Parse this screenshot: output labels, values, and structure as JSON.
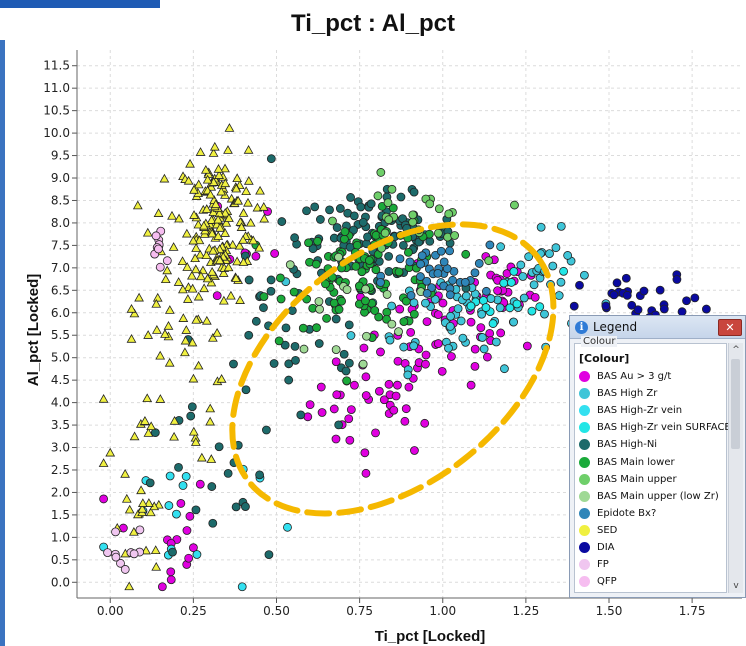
{
  "chart_data": {
    "type": "scatter",
    "title": "Ti_pct : Al_pct",
    "xlabel": "Ti_pct [Locked]",
    "ylabel": "Al_pct [Locked]",
    "xlim": [
      -0.1,
      1.9
    ],
    "ylim": [
      -0.35,
      11.85
    ],
    "x_ticks": [
      "0.00",
      "0.25",
      "0.50",
      "0.75",
      "1.00",
      "1.25",
      "1.50",
      "1.75"
    ],
    "y_ticks": [
      "0.0",
      "0.5",
      "1.0",
      "1.5",
      "2.0",
      "2.5",
      "3.0",
      "3.5",
      "4.0",
      "4.5",
      "5.0",
      "5.5",
      "6.0",
      "6.5",
      "7.0",
      "7.5",
      "8.0",
      "8.5",
      "9.0",
      "9.5",
      "10.0",
      "10.5",
      "11.0",
      "11.5"
    ],
    "grid": true,
    "series": [
      {
        "name": "BAS Au > 3 g/t",
        "color": "#e000e0",
        "marker": "circle",
        "clusters": [
          {
            "cx": 0.8,
            "cy": 4.0,
            "sx": 0.1,
            "sy": 0.6,
            "n": 40
          },
          {
            "cx": 1.0,
            "cy": 5.6,
            "sx": 0.12,
            "sy": 0.6,
            "n": 50
          },
          {
            "cx": 1.2,
            "cy": 6.6,
            "sx": 0.06,
            "sy": 0.3,
            "n": 20
          },
          {
            "cx": 0.4,
            "cy": 7.5,
            "sx": 0.05,
            "sy": 0.8,
            "n": 8
          },
          {
            "cx": 0.15,
            "cy": 1.0,
            "sx": 0.08,
            "sy": 0.8,
            "n": 15
          }
        ]
      },
      {
        "name": "BAS High Zr",
        "color": "#3fc5d8",
        "marker": "circle",
        "clusters": [
          {
            "cx": 1.05,
            "cy": 6.0,
            "sx": 0.15,
            "sy": 0.6,
            "n": 60
          },
          {
            "cx": 1.3,
            "cy": 7.0,
            "sx": 0.07,
            "sy": 0.4,
            "n": 25
          }
        ]
      },
      {
        "name": "BAS High-Zr vein",
        "color": "#33e0f0",
        "marker": "circle",
        "clusters": [
          {
            "cx": 0.2,
            "cy": 1.5,
            "sx": 0.12,
            "sy": 1.0,
            "n": 15
          }
        ]
      },
      {
        "name": "BAS High-Zr vein SURFACE",
        "color": "#22e6e6",
        "marker": "circle",
        "clusters": [
          {
            "cx": 1.2,
            "cy": 6.4,
            "sx": 0.08,
            "sy": 0.3,
            "n": 15
          }
        ]
      },
      {
        "name": "BAS High-Ni",
        "color": "#1d6b6b",
        "marker": "circle",
        "clusters": [
          {
            "cx": 0.8,
            "cy": 7.7,
            "sx": 0.12,
            "sy": 0.45,
            "n": 110
          },
          {
            "cx": 0.55,
            "cy": 5.5,
            "sx": 0.15,
            "sy": 1.2,
            "n": 40
          },
          {
            "cx": 0.3,
            "cy": 2.0,
            "sx": 0.12,
            "sy": 0.9,
            "n": 20
          }
        ]
      },
      {
        "name": "BAS Main lower",
        "color": "#1aaa3a",
        "marker": "circle",
        "clusters": [
          {
            "cx": 0.78,
            "cy": 6.9,
            "sx": 0.12,
            "sy": 0.6,
            "n": 110
          }
        ]
      },
      {
        "name": "BAS Main upper",
        "color": "#6fcf6a",
        "marker": "circle",
        "clusters": [
          {
            "cx": 0.9,
            "cy": 8.0,
            "sx": 0.1,
            "sy": 0.5,
            "n": 25
          }
        ]
      },
      {
        "name": "BAS Main upper (low Zr)",
        "color": "#9fd995",
        "marker": "circle",
        "clusters": [
          {
            "cx": 0.7,
            "cy": 6.2,
            "sx": 0.1,
            "sy": 0.6,
            "n": 15
          }
        ]
      },
      {
        "name": "Epidote Bx?",
        "color": "#2f86b9",
        "marker": "circle",
        "clusters": [
          {
            "cx": 0.98,
            "cy": 6.8,
            "sx": 0.08,
            "sy": 0.35,
            "n": 35
          }
        ]
      },
      {
        "name": "SED",
        "color": "#f0f040",
        "marker": "triangle",
        "clusters": [
          {
            "cx": 0.32,
            "cy": 8.0,
            "sx": 0.06,
            "sy": 0.9,
            "n": 170
          },
          {
            "cx": 0.2,
            "cy": 5.5,
            "sx": 0.07,
            "sy": 1.5,
            "n": 50
          },
          {
            "cx": 0.08,
            "cy": 2.0,
            "sx": 0.05,
            "sy": 1.5,
            "n": 30
          }
        ]
      },
      {
        "name": "DIA",
        "color": "#0a0aa0",
        "marker": "circle",
        "clusters": [
          {
            "cx": 1.62,
            "cy": 6.1,
            "sx": 0.1,
            "sy": 0.35,
            "n": 35
          }
        ]
      },
      {
        "name": "FP",
        "color": "#f0c6f0",
        "marker": "circle",
        "clusters": [
          {
            "cx": 0.05,
            "cy": 0.5,
            "sx": 0.04,
            "sy": 0.4,
            "n": 10
          }
        ]
      },
      {
        "name": "QFP",
        "color": "#f6bdf0",
        "marker": "circle",
        "clusters": [
          {
            "cx": 0.15,
            "cy": 7.5,
            "sx": 0.02,
            "sy": 0.3,
            "n": 10
          }
        ]
      }
    ],
    "annotation_ellipse": {
      "cx": 0.85,
      "cy": 4.75,
      "rx": 0.55,
      "ry": 0.8,
      "angle_deg": -20,
      "color": "#f5b800"
    }
  },
  "legend": {
    "title": "Legend",
    "group_label": "Colour",
    "heading": "[Colour]",
    "close_icon": "close-icon",
    "info_icon": "info-icon",
    "info_glyph": "i",
    "close_glyph": "✕",
    "up_glyph": "^",
    "down_glyph": "v"
  }
}
